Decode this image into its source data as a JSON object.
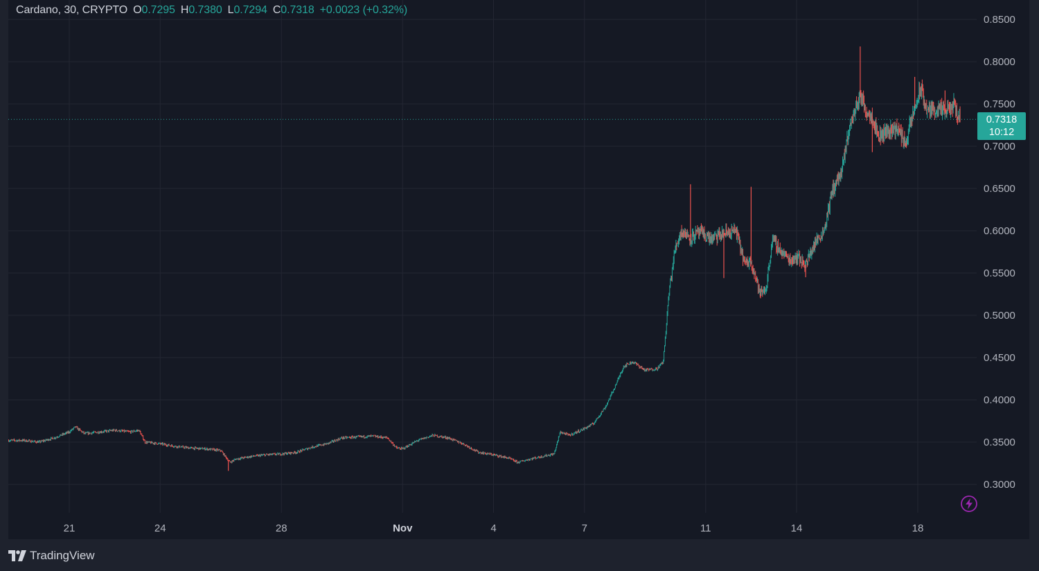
{
  "legend": {
    "symbol": "Cardano, 30, CRYPTO",
    "open_label": "O",
    "open": "0.7295",
    "high_label": "H",
    "high": "0.7380",
    "low_label": "L",
    "low": "0.7294",
    "close_label": "C",
    "close": "0.7318",
    "change": "+0.0023 (+0.32%)"
  },
  "price_tag": {
    "price": "0.7318",
    "countdown": "10:12"
  },
  "footer": {
    "brand": "TradingView"
  },
  "icons": {
    "footer_logo": "tradingview-logo-icon",
    "lightning": "lightning-icon"
  },
  "colors": {
    "background": "#151924",
    "up": "#26a69a",
    "down": "#ef5350",
    "grid": "#232632",
    "axis_text": "#b2b5be"
  },
  "chart_data": {
    "type": "candlestick",
    "title": "Cardano, 30, CRYPTO",
    "interval": "30",
    "ylim": [
      0.25,
      0.86
    ],
    "y_ticks": [
      "0.3000",
      "0.3500",
      "0.4000",
      "0.4500",
      "0.5000",
      "0.5500",
      "0.6000",
      "0.6500",
      "0.7000",
      "0.7500",
      "0.8000",
      "0.8500"
    ],
    "x_ticks": [
      {
        "label": "21",
        "day": 21
      },
      {
        "label": "24",
        "day": 24
      },
      {
        "label": "28",
        "day": 28
      },
      {
        "label": "Nov",
        "day": 32
      },
      {
        "label": "4",
        "day": 35
      },
      {
        "label": "7",
        "day": 38
      },
      {
        "label": "11",
        "day": 42
      },
      {
        "label": "14",
        "day": 45
      },
      {
        "label": "18",
        "day": 49
      }
    ],
    "grid": true,
    "last_price": 0.7318,
    "price_path": [
      [
        19.0,
        0.352
      ],
      [
        19.5,
        0.352
      ],
      [
        20.0,
        0.35
      ],
      [
        20.5,
        0.355
      ],
      [
        21.0,
        0.362
      ],
      [
        21.2,
        0.368
      ],
      [
        21.5,
        0.36
      ],
      [
        22.0,
        0.362
      ],
      [
        22.5,
        0.364
      ],
      [
        23.0,
        0.362
      ],
      [
        23.3,
        0.364
      ],
      [
        23.5,
        0.35
      ],
      [
        24.0,
        0.348
      ],
      [
        24.5,
        0.345
      ],
      [
        25.0,
        0.343
      ],
      [
        25.5,
        0.342
      ],
      [
        26.0,
        0.34
      ],
      [
        26.3,
        0.326
      ],
      [
        26.5,
        0.33
      ],
      [
        27.0,
        0.333
      ],
      [
        27.5,
        0.335
      ],
      [
        28.0,
        0.336
      ],
      [
        28.5,
        0.338
      ],
      [
        29.0,
        0.344
      ],
      [
        29.5,
        0.348
      ],
      [
        30.0,
        0.355
      ],
      [
        30.5,
        0.356
      ],
      [
        31.0,
        0.357
      ],
      [
        31.5,
        0.355
      ],
      [
        31.8,
        0.343
      ],
      [
        32.0,
        0.342
      ],
      [
        32.5,
        0.352
      ],
      [
        33.0,
        0.358
      ],
      [
        33.5,
        0.355
      ],
      [
        34.0,
        0.348
      ],
      [
        34.5,
        0.338
      ],
      [
        35.0,
        0.335
      ],
      [
        35.5,
        0.331
      ],
      [
        35.8,
        0.326
      ],
      [
        36.2,
        0.33
      ],
      [
        36.6,
        0.333
      ],
      [
        37.0,
        0.336
      ],
      [
        37.2,
        0.362
      ],
      [
        37.5,
        0.358
      ],
      [
        38.0,
        0.366
      ],
      [
        38.3,
        0.372
      ],
      [
        38.7,
        0.392
      ],
      [
        39.0,
        0.415
      ],
      [
        39.3,
        0.44
      ],
      [
        39.6,
        0.445
      ],
      [
        40.0,
        0.435
      ],
      [
        40.4,
        0.437
      ],
      [
        40.6,
        0.445
      ],
      [
        40.8,
        0.53
      ],
      [
        41.0,
        0.58
      ],
      [
        41.2,
        0.6
      ],
      [
        41.5,
        0.592
      ],
      [
        41.8,
        0.598
      ],
      [
        42.2,
        0.59
      ],
      [
        42.6,
        0.597
      ],
      [
        43.0,
        0.6
      ],
      [
        43.3,
        0.56
      ],
      [
        43.5,
        0.565
      ],
      [
        43.8,
        0.525
      ],
      [
        44.0,
        0.532
      ],
      [
        44.2,
        0.59
      ],
      [
        44.5,
        0.575
      ],
      [
        44.8,
        0.565
      ],
      [
        45.0,
        0.57
      ],
      [
        45.3,
        0.56
      ],
      [
        45.6,
        0.585
      ],
      [
        45.9,
        0.6
      ],
      [
        46.2,
        0.65
      ],
      [
        46.5,
        0.67
      ],
      [
        46.7,
        0.715
      ],
      [
        46.9,
        0.74
      ],
      [
        47.1,
        0.76
      ],
      [
        47.3,
        0.742
      ],
      [
        47.5,
        0.735
      ],
      [
        47.7,
        0.712
      ],
      [
        48.0,
        0.718
      ],
      [
        48.3,
        0.722
      ],
      [
        48.6,
        0.704
      ],
      [
        48.9,
        0.745
      ],
      [
        49.1,
        0.768
      ],
      [
        49.3,
        0.742
      ],
      [
        49.6,
        0.744
      ],
      [
        49.9,
        0.74
      ],
      [
        50.2,
        0.748
      ],
      [
        50.4,
        0.7318
      ]
    ],
    "spikes": [
      [
        26.25,
        0.316
      ],
      [
        41.5,
        0.655
      ],
      [
        42.6,
        0.544
      ],
      [
        43.5,
        0.652
      ],
      [
        43.8,
        0.521
      ],
      [
        45.3,
        0.545
      ],
      [
        47.1,
        0.818
      ],
      [
        47.5,
        0.693
      ],
      [
        48.6,
        0.699
      ],
      [
        48.9,
        0.782
      ],
      [
        49.9,
        0.766
      ]
    ]
  }
}
